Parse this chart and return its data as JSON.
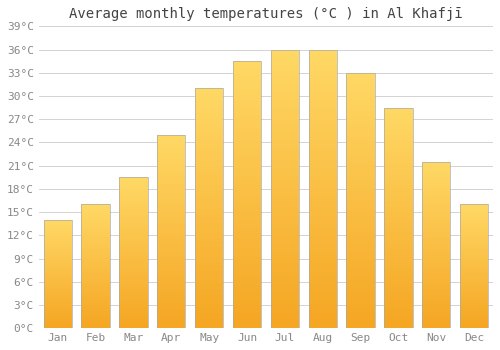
{
  "title": "Average monthly temperatures (°C ) in Al Khafjī",
  "months": [
    "Jan",
    "Feb",
    "Mar",
    "Apr",
    "May",
    "Jun",
    "Jul",
    "Aug",
    "Sep",
    "Oct",
    "Nov",
    "Dec"
  ],
  "values": [
    14,
    16,
    19.5,
    25,
    31,
    34.5,
    36,
    36,
    33,
    28.5,
    21.5,
    16
  ],
  "bar_color_bottom": "#F5A623",
  "bar_color_top": "#FFD966",
  "bar_edge_color": "#AAAAAA",
  "background_color": "#FFFFFF",
  "plot_bg_color": "#FFFFFF",
  "grid_color": "#CCCCCC",
  "text_color": "#888888",
  "title_color": "#444444",
  "ylim": [
    0,
    39
  ],
  "yticks": [
    0,
    3,
    6,
    9,
    12,
    15,
    18,
    21,
    24,
    27,
    30,
    33,
    36,
    39
  ],
  "ytick_labels": [
    "0°C",
    "3°C",
    "6°C",
    "9°C",
    "12°C",
    "15°C",
    "18°C",
    "21°C",
    "24°C",
    "27°C",
    "30°C",
    "33°C",
    "36°C",
    "39°C"
  ],
  "title_fontsize": 10,
  "tick_fontsize": 8,
  "font_family": "monospace",
  "bar_width": 0.75
}
